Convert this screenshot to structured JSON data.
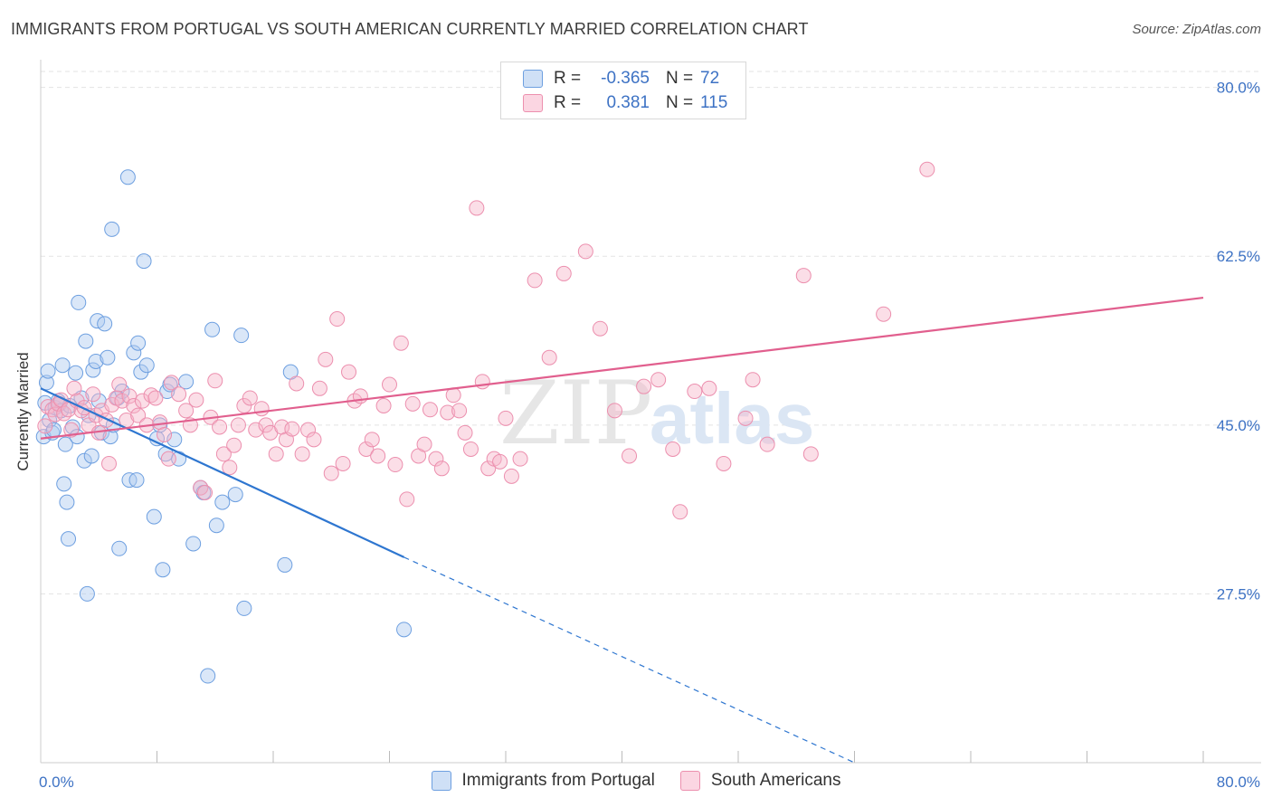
{
  "title": "IMMIGRANTS FROM PORTUGAL VS SOUTH AMERICAN CURRENTLY MARRIED CORRELATION CHART",
  "source": "Source: ZipAtlas.com",
  "watermark": {
    "zip": "ZIP",
    "atlas": "atlas"
  },
  "legend": {
    "r_label": "R =",
    "n_label": "N =",
    "rows": [
      {
        "r": "-0.365",
        "n": "72",
        "color": "#aec9ef"
      },
      {
        "r": "0.381",
        "n": "115",
        "color": "#f6b5ca"
      }
    ]
  },
  "bottom_legend": [
    {
      "label": "Immigrants from Portugal",
      "color": "#aec9ef"
    },
    {
      "label": "South Americans",
      "color": "#f6b5ca"
    }
  ],
  "chart_data": {
    "type": "scatter",
    "xlabel": "",
    "ylabel": "Currently Married",
    "xlim": [
      0,
      80
    ],
    "ylim": [
      10,
      82.5
    ],
    "x_tick_labels": [
      "0.0%",
      "80.0%"
    ],
    "y_ticks": [
      {
        "value": 80,
        "label": "80.0%"
      },
      {
        "value": 62.5,
        "label": "62.5%"
      },
      {
        "value": 45,
        "label": "45.0%"
      },
      {
        "value": 27.5,
        "label": "27.5%"
      }
    ],
    "grid": "horizontal dashed",
    "legend_position": "top-center",
    "series": [
      {
        "name": "Immigrants from Portugal",
        "color": "#6d9fe0",
        "fill": "#aec9ef",
        "line_color": "#2e76d0",
        "trend": {
          "x0": 0,
          "y0": 48.8,
          "x1": 25,
          "y1": 31.3,
          "dash_to_x": 56,
          "dash_to_y": 10
        },
        "points": [
          [
            0.2,
            43.8
          ],
          [
            0.3,
            47.3
          ],
          [
            0.4,
            49.4
          ],
          [
            0.5,
            50.6
          ],
          [
            0.6,
            45.5
          ],
          [
            0.8,
            44.2
          ],
          [
            0.9,
            44.5
          ],
          [
            1.0,
            46.8
          ],
          [
            1.2,
            47.5
          ],
          [
            1.3,
            47.2
          ],
          [
            1.4,
            46.5
          ],
          [
            1.5,
            51.2
          ],
          [
            1.6,
            38.9
          ],
          [
            1.7,
            43.0
          ],
          [
            1.8,
            37.0
          ],
          [
            1.9,
            33.2
          ],
          [
            2.0,
            47.0
          ],
          [
            2.2,
            44.8
          ],
          [
            2.4,
            50.4
          ],
          [
            2.5,
            43.8
          ],
          [
            2.6,
            57.7
          ],
          [
            2.8,
            47.8
          ],
          [
            3.0,
            41.3
          ],
          [
            3.1,
            53.7
          ],
          [
            3.2,
            27.5
          ],
          [
            3.3,
            46.0
          ],
          [
            3.5,
            41.8
          ],
          [
            3.6,
            50.7
          ],
          [
            3.8,
            51.6
          ],
          [
            3.9,
            55.8
          ],
          [
            4.0,
            47.5
          ],
          [
            4.2,
            44.2
          ],
          [
            4.4,
            55.5
          ],
          [
            4.6,
            52.0
          ],
          [
            4.8,
            43.8
          ],
          [
            4.9,
            65.3
          ],
          [
            5.0,
            45.0
          ],
          [
            5.3,
            47.8
          ],
          [
            5.4,
            32.2
          ],
          [
            5.6,
            48.5
          ],
          [
            6.0,
            70.7
          ],
          [
            6.1,
            39.3
          ],
          [
            6.4,
            52.5
          ],
          [
            6.6,
            39.3
          ],
          [
            6.7,
            53.5
          ],
          [
            6.9,
            50.5
          ],
          [
            7.1,
            62.0
          ],
          [
            7.3,
            51.2
          ],
          [
            7.8,
            35.5
          ],
          [
            8.0,
            43.6
          ],
          [
            8.2,
            45.0
          ],
          [
            8.4,
            30.0
          ],
          [
            8.6,
            42.0
          ],
          [
            8.7,
            48.5
          ],
          [
            8.9,
            49.2
          ],
          [
            9.2,
            43.5
          ],
          [
            9.5,
            41.5
          ],
          [
            10.0,
            49.5
          ],
          [
            10.5,
            32.7
          ],
          [
            11.0,
            38.5
          ],
          [
            11.2,
            38.0
          ],
          [
            11.5,
            19.0
          ],
          [
            11.8,
            54.9
          ],
          [
            12.1,
            34.6
          ],
          [
            12.5,
            37.0
          ],
          [
            13.4,
            37.8
          ],
          [
            13.8,
            54.3
          ],
          [
            14.0,
            26.0
          ],
          [
            16.8,
            30.5
          ],
          [
            17.2,
            50.5
          ],
          [
            25.0,
            23.8
          ]
        ]
      },
      {
        "name": "South Americans",
        "color": "#ec8fae",
        "fill": "#f6b5ca",
        "line_color": "#e15f8e",
        "trend": {
          "x0": 0,
          "y0": 43.6,
          "x1": 80,
          "y1": 58.2
        },
        "points": [
          [
            0.3,
            44.9
          ],
          [
            0.5,
            46.9
          ],
          [
            0.8,
            46.6
          ],
          [
            1.0,
            46.1
          ],
          [
            1.2,
            47.2
          ],
          [
            1.4,
            47.6
          ],
          [
            1.6,
            46.2
          ],
          [
            1.9,
            46.6
          ],
          [
            2.1,
            44.5
          ],
          [
            2.3,
            48.8
          ],
          [
            2.5,
            47.5
          ],
          [
            2.8,
            46.5
          ],
          [
            3.0,
            46.8
          ],
          [
            3.3,
            45.0
          ],
          [
            3.6,
            48.2
          ],
          [
            3.8,
            46.0
          ],
          [
            4.0,
            44.2
          ],
          [
            4.2,
            46.5
          ],
          [
            4.5,
            45.5
          ],
          [
            4.7,
            41.0
          ],
          [
            4.9,
            47.1
          ],
          [
            5.2,
            47.8
          ],
          [
            5.4,
            49.2
          ],
          [
            5.6,
            47.5
          ],
          [
            5.9,
            45.5
          ],
          [
            6.1,
            48.0
          ],
          [
            6.4,
            47.0
          ],
          [
            6.7,
            46.0
          ],
          [
            7.0,
            47.5
          ],
          [
            7.3,
            45.0
          ],
          [
            7.6,
            48.1
          ],
          [
            7.9,
            47.8
          ],
          [
            8.2,
            45.3
          ],
          [
            8.5,
            44.0
          ],
          [
            8.8,
            41.5
          ],
          [
            9.0,
            49.4
          ],
          [
            9.5,
            48.2
          ],
          [
            10.0,
            46.5
          ],
          [
            10.3,
            45.0
          ],
          [
            10.7,
            47.6
          ],
          [
            11.0,
            38.5
          ],
          [
            11.3,
            38.0
          ],
          [
            11.7,
            45.8
          ],
          [
            12.0,
            49.6
          ],
          [
            12.3,
            44.8
          ],
          [
            12.6,
            42.0
          ],
          [
            13.0,
            40.6
          ],
          [
            13.3,
            42.9
          ],
          [
            13.6,
            45.0
          ],
          [
            14.0,
            47.0
          ],
          [
            14.4,
            47.8
          ],
          [
            14.8,
            44.5
          ],
          [
            15.2,
            46.7
          ],
          [
            15.5,
            45.0
          ],
          [
            15.8,
            44.2
          ],
          [
            16.2,
            42.0
          ],
          [
            16.6,
            44.8
          ],
          [
            16.9,
            43.5
          ],
          [
            17.3,
            44.6
          ],
          [
            17.6,
            49.3
          ],
          [
            18.0,
            42.0
          ],
          [
            18.4,
            44.5
          ],
          [
            18.8,
            43.5
          ],
          [
            19.2,
            48.8
          ],
          [
            19.6,
            51.8
          ],
          [
            20.0,
            40.0
          ],
          [
            20.4,
            56.0
          ],
          [
            20.8,
            41.0
          ],
          [
            21.2,
            50.5
          ],
          [
            21.6,
            47.5
          ],
          [
            22.0,
            48.0
          ],
          [
            22.4,
            42.5
          ],
          [
            22.8,
            43.5
          ],
          [
            23.2,
            41.8
          ],
          [
            23.6,
            47.0
          ],
          [
            24.0,
            49.2
          ],
          [
            24.4,
            40.9
          ],
          [
            24.8,
            53.5
          ],
          [
            25.2,
            37.3
          ],
          [
            25.6,
            47.2
          ],
          [
            26.0,
            41.8
          ],
          [
            26.4,
            43.0
          ],
          [
            26.8,
            46.6
          ],
          [
            27.2,
            41.5
          ],
          [
            27.6,
            40.5
          ],
          [
            28.0,
            46.3
          ],
          [
            28.4,
            48.1
          ],
          [
            28.8,
            46.5
          ],
          [
            29.2,
            44.2
          ],
          [
            29.6,
            42.5
          ],
          [
            30.0,
            67.5
          ],
          [
            30.4,
            49.5
          ],
          [
            30.8,
            40.5
          ],
          [
            31.2,
            41.5
          ],
          [
            31.6,
            41.2
          ],
          [
            32.0,
            45.7
          ],
          [
            32.4,
            39.7
          ],
          [
            33.0,
            41.5
          ],
          [
            34.0,
            60.0
          ],
          [
            35.0,
            52.0
          ],
          [
            36.0,
            60.7
          ],
          [
            37.5,
            63.0
          ],
          [
            38.5,
            55.0
          ],
          [
            39.5,
            46.5
          ],
          [
            40.5,
            41.8
          ],
          [
            41.5,
            49.0
          ],
          [
            42.5,
            49.7
          ],
          [
            43.5,
            42.5
          ],
          [
            44.0,
            36.0
          ],
          [
            45.0,
            48.5
          ],
          [
            46.0,
            48.8
          ],
          [
            47.0,
            41.0
          ],
          [
            48.5,
            45.7
          ],
          [
            49.0,
            49.7
          ],
          [
            50.0,
            43.0
          ],
          [
            52.5,
            60.5
          ],
          [
            53.0,
            42.0
          ],
          [
            58.0,
            56.5
          ],
          [
            61.0,
            71.5
          ]
        ]
      }
    ]
  }
}
